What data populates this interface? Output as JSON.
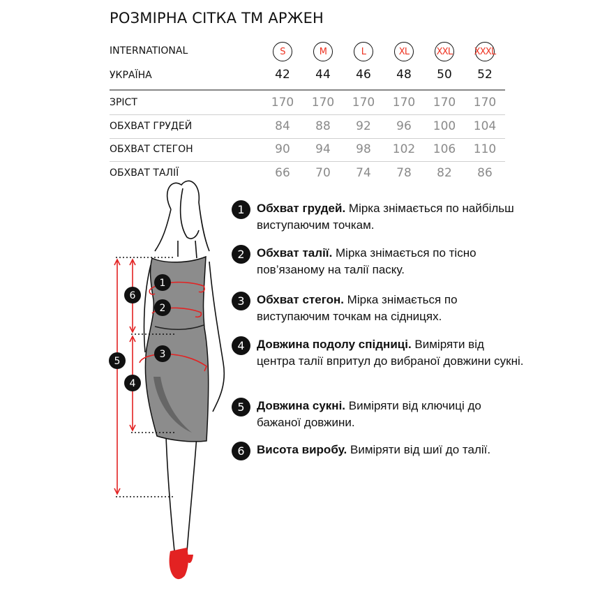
{
  "title": "РОЗМІРНА СІТКА ТМ АРЖЕН",
  "table": {
    "international_label": "INTERNATIONAL",
    "international": [
      "S",
      "M",
      "L",
      "XL",
      "XXL",
      "XXXL"
    ],
    "ukraine_label": "УКРАЇНА",
    "ukraine": [
      "42",
      "44",
      "46",
      "48",
      "50",
      "52"
    ],
    "rows": [
      {
        "label": "ЗРІСТ",
        "values": [
          "170",
          "170",
          "170",
          "170",
          "170",
          "170"
        ]
      },
      {
        "label": "ОБХВАТ ГРУДЕЙ",
        "values": [
          "84",
          "88",
          "92",
          "96",
          "100",
          "104"
        ]
      },
      {
        "label": "ОБХВАТ СТЕГОН",
        "values": [
          "90",
          "94",
          "98",
          "102",
          "106",
          "110"
        ]
      },
      {
        "label": "ОБХВАТ ТАЛІЇ",
        "values": [
          "66",
          "70",
          "74",
          "78",
          "82",
          "86"
        ]
      }
    ]
  },
  "instructions": [
    {
      "num": "1",
      "bold": "Обхват грудей.",
      "text": " Мірка знімається по найбільш виступаючим точкам."
    },
    {
      "num": "2",
      "bold": "Обхват талії.",
      "text": " Мірка знімається по тісно пов’язаному на талії паску."
    },
    {
      "num": "3",
      "bold": "Обхват стегон.",
      "text": " Мірка знімається по виступаючим точкам на сідницях."
    },
    {
      "num": "4",
      "bold": "Довжина подолу спідниці.",
      "text": " Виміряти від центра талії впритул до вибраної довжини сукні."
    },
    {
      "num": "5",
      "bold": "Довжина сукні.",
      "text": " Виміряти від ключиці до бажаної довжини."
    },
    {
      "num": "6",
      "bold": "Висота виробу.",
      "text": " Виміряти від шиї до талії."
    }
  ],
  "figure": {
    "markers": [
      "1",
      "2",
      "3",
      "4",
      "5",
      "6"
    ]
  },
  "colors": {
    "accent": "#e32222",
    "dress": "#8c8c8c",
    "text": "#111111",
    "muted": "#8a8a8a"
  }
}
